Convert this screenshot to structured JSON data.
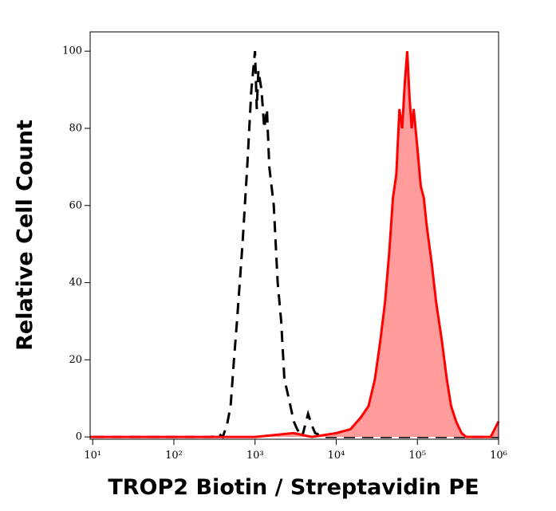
{
  "chart_data": {
    "type": "line",
    "xscale": "log",
    "xlabel": "TROP2 Biotin / Streptavidin PE",
    "ylabel": "Relative Cell Count",
    "xlim": [
      9.3,
      1000000
    ],
    "ylim": [
      -0.6,
      105
    ],
    "xticks": [
      {
        "value": 10,
        "label": "10¹"
      },
      {
        "value": 100,
        "label": "10²"
      },
      {
        "value": 1000,
        "label": "10³"
      },
      {
        "value": 10000,
        "label": "10⁴"
      },
      {
        "value": 100000,
        "label": "10⁵"
      },
      {
        "value": 1000000,
        "label": "10⁶"
      }
    ],
    "yticks": [
      0,
      20,
      40,
      60,
      80,
      100
    ],
    "series": [
      {
        "color": "#000000",
        "dashed": true,
        "filled": false,
        "x": [
          10,
          100,
          300,
          350,
          400,
          450,
          500,
          550,
          600,
          700,
          800,
          900,
          1000,
          1050,
          1100,
          1200,
          1300,
          1400,
          1500,
          1700,
          1900,
          2100,
          2300,
          2600,
          3000,
          3300,
          3800,
          4500,
          5000,
          5500,
          7000,
          20000,
          1000000
        ],
        "values": [
          0,
          0,
          0,
          1,
          0,
          3,
          8,
          20,
          30,
          50,
          70,
          90,
          100,
          85,
          95,
          90,
          80,
          85,
          70,
          60,
          40,
          30,
          15,
          10,
          4,
          2,
          0,
          6,
          3,
          1,
          0,
          0,
          0
        ]
      },
      {
        "color": "#ff0000",
        "fill": "#ff9b9b",
        "dashed": false,
        "filled": true,
        "x": [
          9.3,
          1000,
          3000,
          5000,
          10000,
          15000,
          20000,
          25000,
          30000,
          35000,
          40000,
          45000,
          50000,
          55000,
          60000,
          65000,
          70000,
          75000,
          80000,
          85000,
          90000,
          100000,
          110000,
          120000,
          130000,
          150000,
          170000,
          200000,
          230000,
          260000,
          300000,
          350000,
          400000,
          800000,
          1000000
        ],
        "values": [
          0,
          0,
          1,
          0,
          1,
          2,
          5,
          8,
          15,
          25,
          35,
          48,
          62,
          68,
          85,
          80,
          92,
          100,
          88,
          80,
          85,
          75,
          65,
          62,
          55,
          45,
          35,
          25,
          15,
          8,
          4,
          1,
          0,
          0,
          4
        ]
      }
    ]
  }
}
